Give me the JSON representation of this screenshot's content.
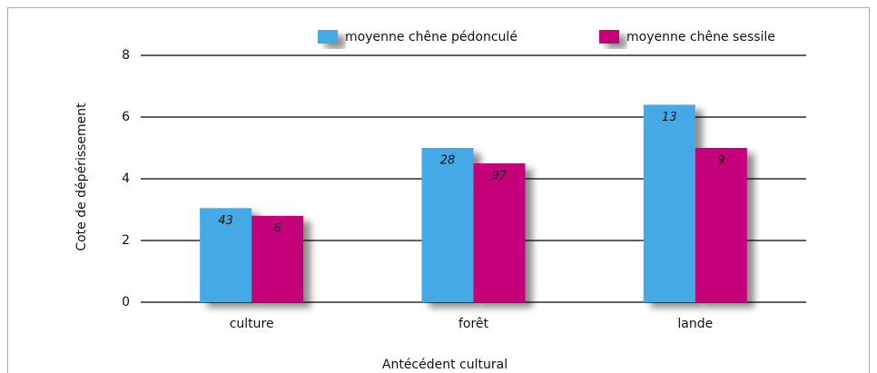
{
  "chart_data": {
    "type": "bar",
    "categories": [
      "culture",
      "forêt",
      "lande"
    ],
    "series": [
      {
        "name": "moyenne chêne pédonculé",
        "color": "#45a9e6",
        "values": [
          3.05,
          5.0,
          6.4
        ],
        "bar_labels": [
          43,
          28,
          13
        ]
      },
      {
        "name": "moyenne chêne sessile",
        "color": "#c4007a",
        "values": [
          2.8,
          4.5,
          5.0
        ],
        "bar_labels": [
          6,
          97,
          9
        ]
      }
    ],
    "x_label": "Antécédent cultural",
    "y_label": "Cote de dépérissement",
    "ylim": [
      0,
      8
    ],
    "yticks": [
      0,
      2,
      4,
      6,
      8
    ],
    "grid": true,
    "legend": "top"
  }
}
